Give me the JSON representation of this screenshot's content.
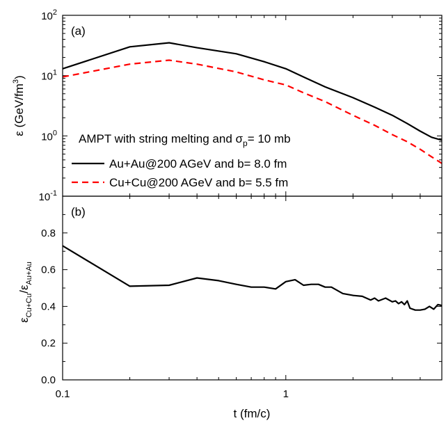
{
  "chart_data": [
    {
      "type": "line",
      "panel_label": "(a)",
      "x_scale": "log",
      "y_scale": "log",
      "xlim": [
        0.1,
        5.0
      ],
      "ylim": [
        0.1,
        100
      ],
      "ylabel": "ε (GeV/fm³)",
      "ylabel_parts": {
        "main": "ε (GeV/fm",
        "sup": "3",
        "close": ")"
      },
      "yticks": [
        {
          "value": 0.1,
          "base": "10",
          "exp": "-1"
        },
        {
          "value": 1,
          "base": "10",
          "exp": "0"
        },
        {
          "value": 10,
          "base": "10",
          "exp": "1"
        },
        {
          "value": 100,
          "base": "10",
          "exp": "2"
        }
      ],
      "annotation": {
        "before": "AMPT with string melting and σ",
        "sub": "p",
        "after": "= 10 mb"
      },
      "legend_position": "bottom-left",
      "series": [
        {
          "name": "Au+Au@200 AGeV and b= 8.0 fm",
          "color": "#000000",
          "style": "solid",
          "x": [
            0.1,
            0.2,
            0.3,
            0.4,
            0.6,
            0.8,
            1.0,
            1.2,
            1.5,
            2.0,
            2.5,
            3.0,
            3.5,
            4.0,
            4.5,
            5.0
          ],
          "y": [
            13,
            30,
            35,
            29,
            23,
            17,
            13,
            9.5,
            6.5,
            4.3,
            3.0,
            2.2,
            1.6,
            1.2,
            0.95,
            0.85
          ]
        },
        {
          "name": "Cu+Cu@200 AGeV and b= 5.5 fm",
          "color": "#ff0000",
          "style": "dashed",
          "x": [
            0.1,
            0.2,
            0.3,
            0.4,
            0.6,
            0.8,
            1.0,
            1.2,
            1.5,
            2.0,
            2.5,
            3.0,
            3.5,
            4.0,
            4.5,
            5.0
          ],
          "y": [
            9.5,
            15.5,
            18,
            15.5,
            11.5,
            8.5,
            7.0,
            5.2,
            3.7,
            2.2,
            1.5,
            1.05,
            0.8,
            0.6,
            0.45,
            0.35
          ]
        }
      ]
    },
    {
      "type": "line",
      "panel_label": "(b)",
      "x_scale": "log",
      "y_scale": "linear",
      "xlim": [
        0.1,
        5.0
      ],
      "ylim": [
        0.0,
        1.0
      ],
      "xlabel": "t (fm/c)",
      "ylabel_parts": {
        "e1": "ε",
        "s1": "Cu+Cu",
        "slash": "/",
        "e2": "ε",
        "s2": "Au+Au"
      },
      "xticks": [
        {
          "value": 0.1,
          "label": "0.1"
        },
        {
          "value": 1,
          "label": "1"
        }
      ],
      "yticks": [
        {
          "value": 0.0,
          "label": "0.0"
        },
        {
          "value": 0.2,
          "label": "0.2"
        },
        {
          "value": 0.4,
          "label": "0.4"
        },
        {
          "value": 0.6,
          "label": "0.6"
        },
        {
          "value": 0.8,
          "label": "0.8"
        }
      ],
      "series": [
        {
          "color": "#000000",
          "style": "solid",
          "x": [
            0.1,
            0.2,
            0.3,
            0.4,
            0.5,
            0.6,
            0.7,
            0.8,
            0.9,
            1.0,
            1.1,
            1.2,
            1.3,
            1.4,
            1.5,
            1.6,
            1.8,
            2.0,
            2.2,
            2.4,
            2.5,
            2.6,
            2.8,
            3.0,
            3.1,
            3.2,
            3.3,
            3.4,
            3.5,
            3.6,
            3.8,
            4.0,
            4.2,
            4.4,
            4.6,
            4.8,
            5.0
          ],
          "y": [
            0.73,
            0.51,
            0.515,
            0.555,
            0.54,
            0.52,
            0.505,
            0.505,
            0.495,
            0.535,
            0.545,
            0.515,
            0.52,
            0.52,
            0.505,
            0.505,
            0.47,
            0.46,
            0.455,
            0.435,
            0.445,
            0.43,
            0.445,
            0.425,
            0.43,
            0.415,
            0.425,
            0.41,
            0.43,
            0.39,
            0.38,
            0.38,
            0.385,
            0.4,
            0.385,
            0.41,
            0.405
          ]
        }
      ]
    }
  ]
}
